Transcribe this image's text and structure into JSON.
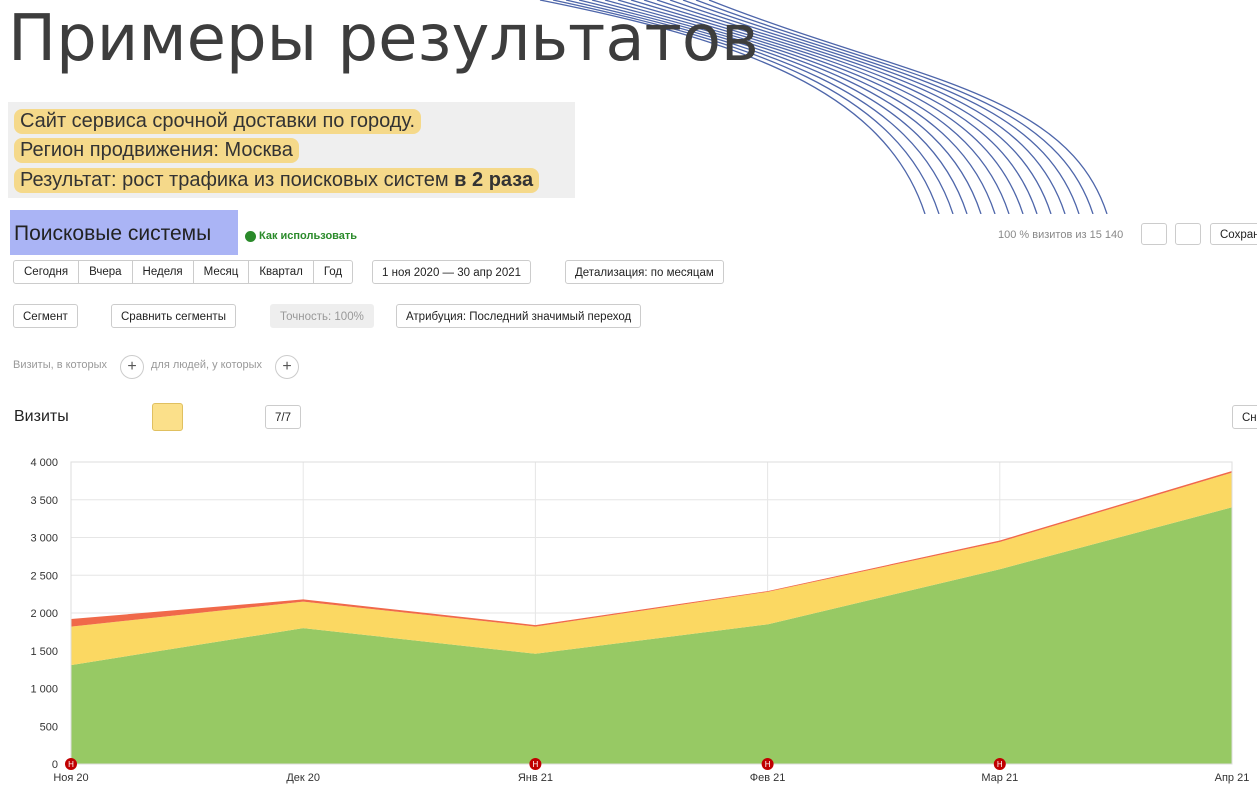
{
  "header": {
    "title": "Примеры результатов"
  },
  "notes": [
    "Сайт сервиса срочной доставки по городу.",
    "Регион продвижения: Москва",
    {
      "text": "Результат: рост трафика из поисковых систем",
      "bold": "в 2 раза"
    }
  ],
  "report": {
    "title": "Поисковые системы",
    "help": "Как использовать",
    "visits_share": "100 % визитов из 15 140",
    "save": "Сохран",
    "periods": [
      "Сегодня",
      "Вчера",
      "Неделя",
      "Месяц",
      "Квартал",
      "Год"
    ],
    "date_range": "1 ноя 2020 — 30 апр 2021",
    "detail": "Детализация: по месяцам",
    "segment": "Сегмент",
    "compare": "Сравнить сегменты",
    "accuracy": "Точность: 100%",
    "attribution": "Атрибуция: Последний значимый переход",
    "filter_visits": "Визиты, в которых",
    "filter_people": "для людей, у которых",
    "metric": "Визиты",
    "annotations": "7/7",
    "side_button": "Сн"
  },
  "chart_data": {
    "type": "stacked_area",
    "categories": [
      "Ноя 20",
      "Дек 20",
      "Янв 21",
      "Фев 21",
      "Мар 21",
      "Апр 21"
    ],
    "series": [
      {
        "color": "#97c964",
        "values": [
          1310,
          1800,
          1460,
          1850,
          2580,
          3400
        ]
      },
      {
        "color": "#fbd862",
        "values": [
          510,
          350,
          360,
          430,
          360,
          460
        ]
      },
      {
        "color": "#f0694a",
        "values": [
          100,
          30,
          20,
          10,
          20,
          20
        ]
      }
    ],
    "ylim": [
      0,
      4000
    ],
    "yticks": [
      0,
      500,
      {
        "value": 1000,
        "label": "1 000"
      },
      {
        "value": 1500,
        "label": "1 500"
      },
      {
        "value": 2000,
        "label": "2 000"
      },
      {
        "value": 2500,
        "label": "2 500"
      },
      {
        "value": 3000,
        "label": "3 000"
      },
      {
        "value": 3500,
        "label": "3 500"
      },
      {
        "value": 4000,
        "label": "4 000"
      }
    ],
    "grid": true,
    "events": [
      {
        "x": "Ноя 20",
        "label": "Н"
      },
      {
        "x": "Янв 21",
        "label": "Н"
      },
      {
        "x": "Фев 21",
        "label": "Н"
      },
      {
        "x": "Мар 21",
        "label": "Н"
      }
    ]
  }
}
